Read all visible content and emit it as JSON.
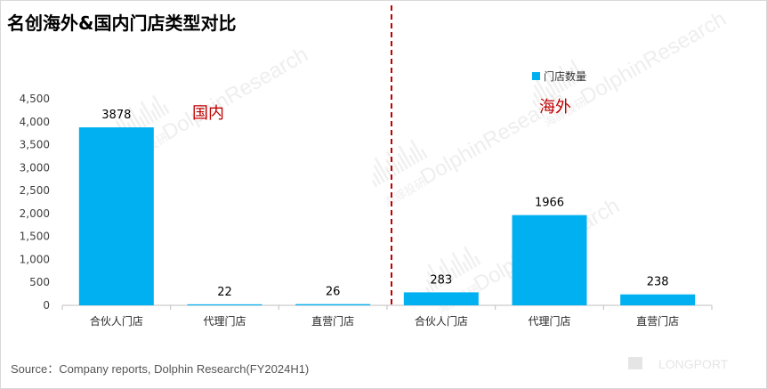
{
  "title": "名创海外&国内门店类型对比",
  "source": "Source：Company reports, Dolphin Research(FY2024H1)",
  "legend": {
    "label": "门店数量"
  },
  "region_labels": {
    "domestic": "国内",
    "overseas": "海外"
  },
  "watermark": {
    "brand": "DolphinResearch",
    "brand_cn": "海豚投研",
    "corner": "LONGPORT"
  },
  "colors": {
    "bar": "#00b0f0",
    "divider": "#c00000",
    "region_text": "#c00000"
  },
  "chart_data": {
    "type": "bar",
    "categories": [
      "合伙人门店",
      "代理门店",
      "直营门店",
      "合伙人门店",
      "代理门店",
      "直营门店"
    ],
    "series": [
      {
        "name": "门店数量",
        "values": [
          3878,
          22,
          26,
          283,
          1966,
          238
        ]
      }
    ],
    "data_labels": [
      "3878",
      "22",
      "26",
      "283",
      "1966",
      "238"
    ],
    "yticks": [
      "0",
      "500",
      "1,000",
      "1,500",
      "2,000",
      "2,500",
      "3,000",
      "3,500",
      "4,000",
      "4,500"
    ],
    "ylim": [
      0,
      4500
    ],
    "grid": false,
    "legend_position": "top-right"
  }
}
